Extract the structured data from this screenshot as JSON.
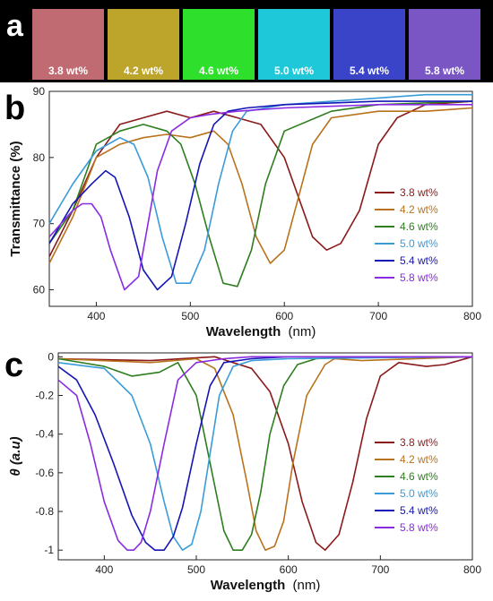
{
  "panel_a": {
    "letter": "a",
    "swatches": [
      {
        "label": "3.8 wt%",
        "color": "#c06a72"
      },
      {
        "label": "4.2 wt%",
        "color": "#bda42a"
      },
      {
        "label": "4.6 wt%",
        "color": "#2ee02c"
      },
      {
        "label": "5.0 wt%",
        "color": "#1fc8d8"
      },
      {
        "label": "5.4 wt%",
        "color": "#3a44c8"
      },
      {
        "label": "5.8 wt%",
        "color": "#7a56c4"
      }
    ]
  },
  "chart_data": [
    {
      "type": "line",
      "panel_letter": "b",
      "xlabel": "Wavelength",
      "xlabel_unit": "(nm)",
      "ylabel": "Transmittance (%)",
      "xlim": [
        350,
        800
      ],
      "ylim": [
        57.5,
        90
      ],
      "xticks": [
        400,
        500,
        600,
        700,
        800
      ],
      "yticks": [
        60,
        70,
        80,
        90
      ],
      "legend_position": "right-middle",
      "series": [
        {
          "name": "3.8 wt%",
          "color": "#8b1a1a",
          "x": [
            350,
            375,
            400,
            425,
            450,
            475,
            500,
            525,
            550,
            575,
            600,
            615,
            630,
            645,
            660,
            680,
            700,
            720,
            750,
            800
          ],
          "y": [
            65,
            72,
            80,
            85,
            86,
            87,
            86,
            87,
            86,
            85,
            80,
            74,
            68,
            66,
            67,
            72,
            82,
            86,
            88,
            88.5
          ]
        },
        {
          "name": "4.2 wt%",
          "color": "#b8721c",
          "x": [
            350,
            375,
            400,
            425,
            450,
            475,
            500,
            525,
            540,
            555,
            570,
            585,
            600,
            615,
            630,
            650,
            700,
            750,
            800
          ],
          "y": [
            64,
            71,
            80,
            82,
            83,
            83.5,
            83,
            84,
            82,
            76,
            68,
            64,
            66,
            74,
            82,
            86,
            87,
            87,
            87.5
          ]
        },
        {
          "name": "4.6 wt%",
          "color": "#2e7d1e",
          "x": [
            350,
            375,
            400,
            425,
            450,
            475,
            490,
            505,
            520,
            535,
            550,
            565,
            580,
            600,
            650,
            700,
            800
          ],
          "y": [
            67,
            72,
            82,
            84,
            85,
            84,
            82,
            76,
            68,
            61,
            60.5,
            66,
            76,
            84,
            87,
            88,
            88.5
          ]
        },
        {
          "name": "5.0 wt%",
          "color": "#3a9bd9",
          "x": [
            350,
            375,
            400,
            425,
            440,
            455,
            470,
            485,
            500,
            515,
            530,
            545,
            560,
            600,
            650,
            700,
            750,
            800
          ],
          "y": [
            70,
            76,
            81,
            83,
            82,
            77,
            68,
            61,
            61,
            66,
            76,
            84,
            87,
            88,
            88.5,
            89,
            89.5,
            89.5
          ]
        },
        {
          "name": "5.4 wt%",
          "color": "#1515b5",
          "x": [
            350,
            375,
            395,
            410,
            420,
            435,
            450,
            465,
            480,
            495,
            510,
            525,
            540,
            560,
            600,
            700,
            800
          ],
          "y": [
            67,
            73,
            76,
            78,
            77,
            71,
            63,
            60,
            62,
            70,
            79,
            85,
            87,
            87.5,
            88,
            88.5,
            88.5
          ]
        },
        {
          "name": "5.8 wt%",
          "color": "#8a2be2",
          "x": [
            350,
            375,
            385,
            395,
            405,
            415,
            430,
            445,
            455,
            465,
            480,
            500,
            520,
            550,
            600,
            700,
            800
          ],
          "y": [
            68,
            72,
            73,
            73,
            71,
            66,
            60,
            62,
            70,
            78,
            84,
            86,
            86.5,
            87,
            87.5,
            88,
            88
          ]
        }
      ]
    },
    {
      "type": "line",
      "panel_letter": "c",
      "xlabel": "Wavelength",
      "xlabel_unit": "(nm)",
      "ylabel": "θ (a.u)",
      "xlim": [
        350,
        800
      ],
      "ylim": [
        -1.05,
        0.02
      ],
      "xticks": [
        400,
        500,
        600,
        700,
        800
      ],
      "yticks": [
        0,
        -0.2,
        -0.4,
        -0.6,
        -0.8,
        -1
      ],
      "yticklabels": [
        "0",
        "-0.2",
        "-0.4",
        "-0.6",
        "-0.8",
        "-1"
      ],
      "legend_position": "right-middle",
      "series": [
        {
          "name": "3.8 wt%",
          "color": "#8b1a1a",
          "x": [
            350,
            450,
            520,
            560,
            580,
            600,
            615,
            630,
            640,
            655,
            670,
            685,
            700,
            720,
            750,
            770,
            800
          ],
          "y": [
            -0.01,
            -0.02,
            0,
            -0.06,
            -0.18,
            -0.45,
            -0.75,
            -0.96,
            -1,
            -0.92,
            -0.65,
            -0.32,
            -0.1,
            -0.03,
            -0.05,
            -0.04,
            0
          ]
        },
        {
          "name": "4.2 wt%",
          "color": "#b8721c",
          "x": [
            350,
            450,
            500,
            520,
            540,
            555,
            565,
            575,
            585,
            595,
            605,
            620,
            640,
            650,
            680,
            800
          ],
          "y": [
            -0.01,
            -0.03,
            -0.01,
            -0.06,
            -0.3,
            -0.65,
            -0.9,
            -1,
            -0.98,
            -0.85,
            -0.55,
            -0.2,
            -0.04,
            -0.01,
            -0.02,
            0
          ]
        },
        {
          "name": "4.6 wt%",
          "color": "#2e7d1e",
          "x": [
            350,
            400,
            430,
            460,
            480,
            500,
            515,
            530,
            540,
            550,
            560,
            570,
            580,
            595,
            610,
            630,
            680,
            800
          ],
          "y": [
            -0.01,
            -0.05,
            -0.1,
            -0.08,
            -0.03,
            -0.2,
            -0.55,
            -0.9,
            -1,
            -1,
            -0.92,
            -0.7,
            -0.4,
            -0.15,
            -0.04,
            -0.01,
            0,
            0
          ]
        },
        {
          "name": "5.0 wt%",
          "color": "#3a9bd9",
          "x": [
            350,
            400,
            430,
            450,
            465,
            475,
            485,
            495,
            505,
            515,
            525,
            540,
            560,
            600,
            800
          ],
          "y": [
            -0.03,
            -0.06,
            -0.2,
            -0.45,
            -0.75,
            -0.93,
            -1,
            -0.97,
            -0.8,
            -0.5,
            -0.2,
            -0.05,
            -0.02,
            -0.01,
            0
          ]
        },
        {
          "name": "5.4 wt%",
          "color": "#1515b5",
          "x": [
            350,
            370,
            390,
            410,
            430,
            445,
            455,
            465,
            475,
            485,
            500,
            515,
            530,
            560,
            600,
            800
          ],
          "y": [
            -0.05,
            -0.12,
            -0.3,
            -0.55,
            -0.82,
            -0.96,
            -1,
            -1,
            -0.93,
            -0.78,
            -0.45,
            -0.15,
            -0.03,
            -0.01,
            0,
            0
          ]
        },
        {
          "name": "5.8 wt%",
          "color": "#8a2be2",
          "x": [
            350,
            370,
            385,
            400,
            415,
            425,
            432,
            440,
            450,
            465,
            480,
            500,
            530,
            560,
            600,
            800
          ],
          "y": [
            -0.12,
            -0.2,
            -0.45,
            -0.75,
            -0.95,
            -1,
            -1,
            -0.96,
            -0.8,
            -0.45,
            -0.12,
            -0.03,
            -0.01,
            0,
            0,
            0
          ]
        }
      ]
    }
  ]
}
